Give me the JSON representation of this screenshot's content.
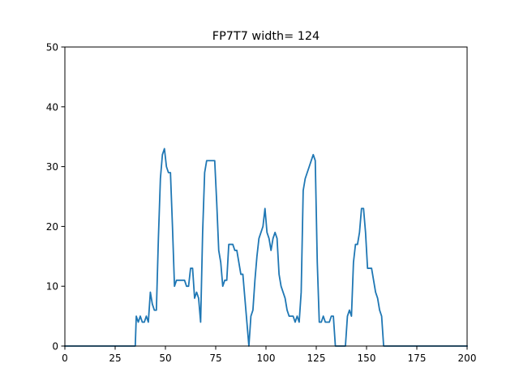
{
  "chart_data": {
    "type": "line",
    "title": "FP7T7 width= 124",
    "xlabel": "",
    "ylabel": "",
    "xlim": [
      0,
      200
    ],
    "ylim": [
      0,
      50
    ],
    "xticks": [
      0,
      25,
      50,
      75,
      100,
      125,
      150,
      175,
      200
    ],
    "yticks": [
      0,
      10,
      20,
      30,
      40,
      50
    ],
    "grid": false,
    "series": [
      {
        "color": "#1f77b4",
        "points": [
          [
            0,
            0
          ],
          [
            35,
            0
          ],
          [
            35.5,
            5
          ],
          [
            36.5,
            4
          ],
          [
            37.5,
            5
          ],
          [
            38.5,
            4
          ],
          [
            39.5,
            4
          ],
          [
            40.5,
            5
          ],
          [
            41.5,
            4
          ],
          [
            42.5,
            9
          ],
          [
            43.5,
            7
          ],
          [
            44.5,
            6
          ],
          [
            45.5,
            6
          ],
          [
            46.5,
            18
          ],
          [
            47.5,
            28
          ],
          [
            48.5,
            32
          ],
          [
            49.5,
            33
          ],
          [
            50.5,
            30
          ],
          [
            51.5,
            29
          ],
          [
            52.5,
            29
          ],
          [
            53.5,
            20
          ],
          [
            54.5,
            10
          ],
          [
            55.5,
            11
          ],
          [
            56.5,
            11
          ],
          [
            57.5,
            11
          ],
          [
            58.5,
            11
          ],
          [
            59.5,
            11
          ],
          [
            60.5,
            10
          ],
          [
            61.5,
            10
          ],
          [
            62.5,
            13
          ],
          [
            63.5,
            13
          ],
          [
            64.5,
            8
          ],
          [
            65.5,
            9
          ],
          [
            66.5,
            8
          ],
          [
            67.5,
            4
          ],
          [
            68.5,
            19
          ],
          [
            69.5,
            29
          ],
          [
            70.5,
            31
          ],
          [
            71.5,
            31
          ],
          [
            72.5,
            31
          ],
          [
            73.5,
            31
          ],
          [
            74.5,
            31
          ],
          [
            75.5,
            24
          ],
          [
            76.5,
            16
          ],
          [
            77.5,
            14
          ],
          [
            78.5,
            10
          ],
          [
            79.5,
            11
          ],
          [
            80.5,
            11
          ],
          [
            81.5,
            17
          ],
          [
            82.5,
            17
          ],
          [
            83.5,
            17
          ],
          [
            84.5,
            16
          ],
          [
            85.5,
            16
          ],
          [
            86.5,
            14
          ],
          [
            87.5,
            12
          ],
          [
            88.5,
            12
          ],
          [
            89.5,
            8
          ],
          [
            90.5,
            4
          ],
          [
            91.5,
            0
          ],
          [
            92.5,
            5
          ],
          [
            93.5,
            6
          ],
          [
            94.5,
            11
          ],
          [
            95.5,
            15
          ],
          [
            96.5,
            18
          ],
          [
            97.5,
            19
          ],
          [
            98.5,
            20
          ],
          [
            99.5,
            23
          ],
          [
            100.5,
            19
          ],
          [
            101.5,
            18
          ],
          [
            102.5,
            16
          ],
          [
            103.5,
            18
          ],
          [
            104.5,
            19
          ],
          [
            105.5,
            18
          ],
          [
            106.5,
            12
          ],
          [
            107.5,
            10
          ],
          [
            108.5,
            9
          ],
          [
            109.5,
            8
          ],
          [
            110.5,
            6
          ],
          [
            111.5,
            5
          ],
          [
            112.5,
            5
          ],
          [
            113.5,
            5
          ],
          [
            114.5,
            4
          ],
          [
            115.5,
            5
          ],
          [
            116.5,
            4
          ],
          [
            117.5,
            9
          ],
          [
            118.5,
            26
          ],
          [
            119.5,
            28
          ],
          [
            120.5,
            29
          ],
          [
            121.5,
            30
          ],
          [
            122.5,
            31
          ],
          [
            123.5,
            32
          ],
          [
            124.5,
            31
          ],
          [
            125.5,
            14
          ],
          [
            126.5,
            4
          ],
          [
            127.5,
            4
          ],
          [
            128.5,
            5
          ],
          [
            129.5,
            4
          ],
          [
            130.5,
            4
          ],
          [
            131.5,
            4
          ],
          [
            132.5,
            5
          ],
          [
            133.5,
            5
          ],
          [
            134.5,
            0
          ],
          [
            139.5,
            0
          ],
          [
            140.5,
            5
          ],
          [
            141.5,
            6
          ],
          [
            142.5,
            5
          ],
          [
            143.5,
            14
          ],
          [
            144.5,
            17
          ],
          [
            145.5,
            17
          ],
          [
            146.5,
            19
          ],
          [
            147.5,
            23
          ],
          [
            148.5,
            23
          ],
          [
            149.5,
            19
          ],
          [
            150.5,
            13
          ],
          [
            151.5,
            13
          ],
          [
            152.5,
            13
          ],
          [
            153.5,
            11
          ],
          [
            154.5,
            9
          ],
          [
            155.5,
            8
          ],
          [
            156.5,
            6
          ],
          [
            157.5,
            5
          ],
          [
            158.5,
            0
          ],
          [
            200,
            0
          ]
        ]
      }
    ]
  }
}
